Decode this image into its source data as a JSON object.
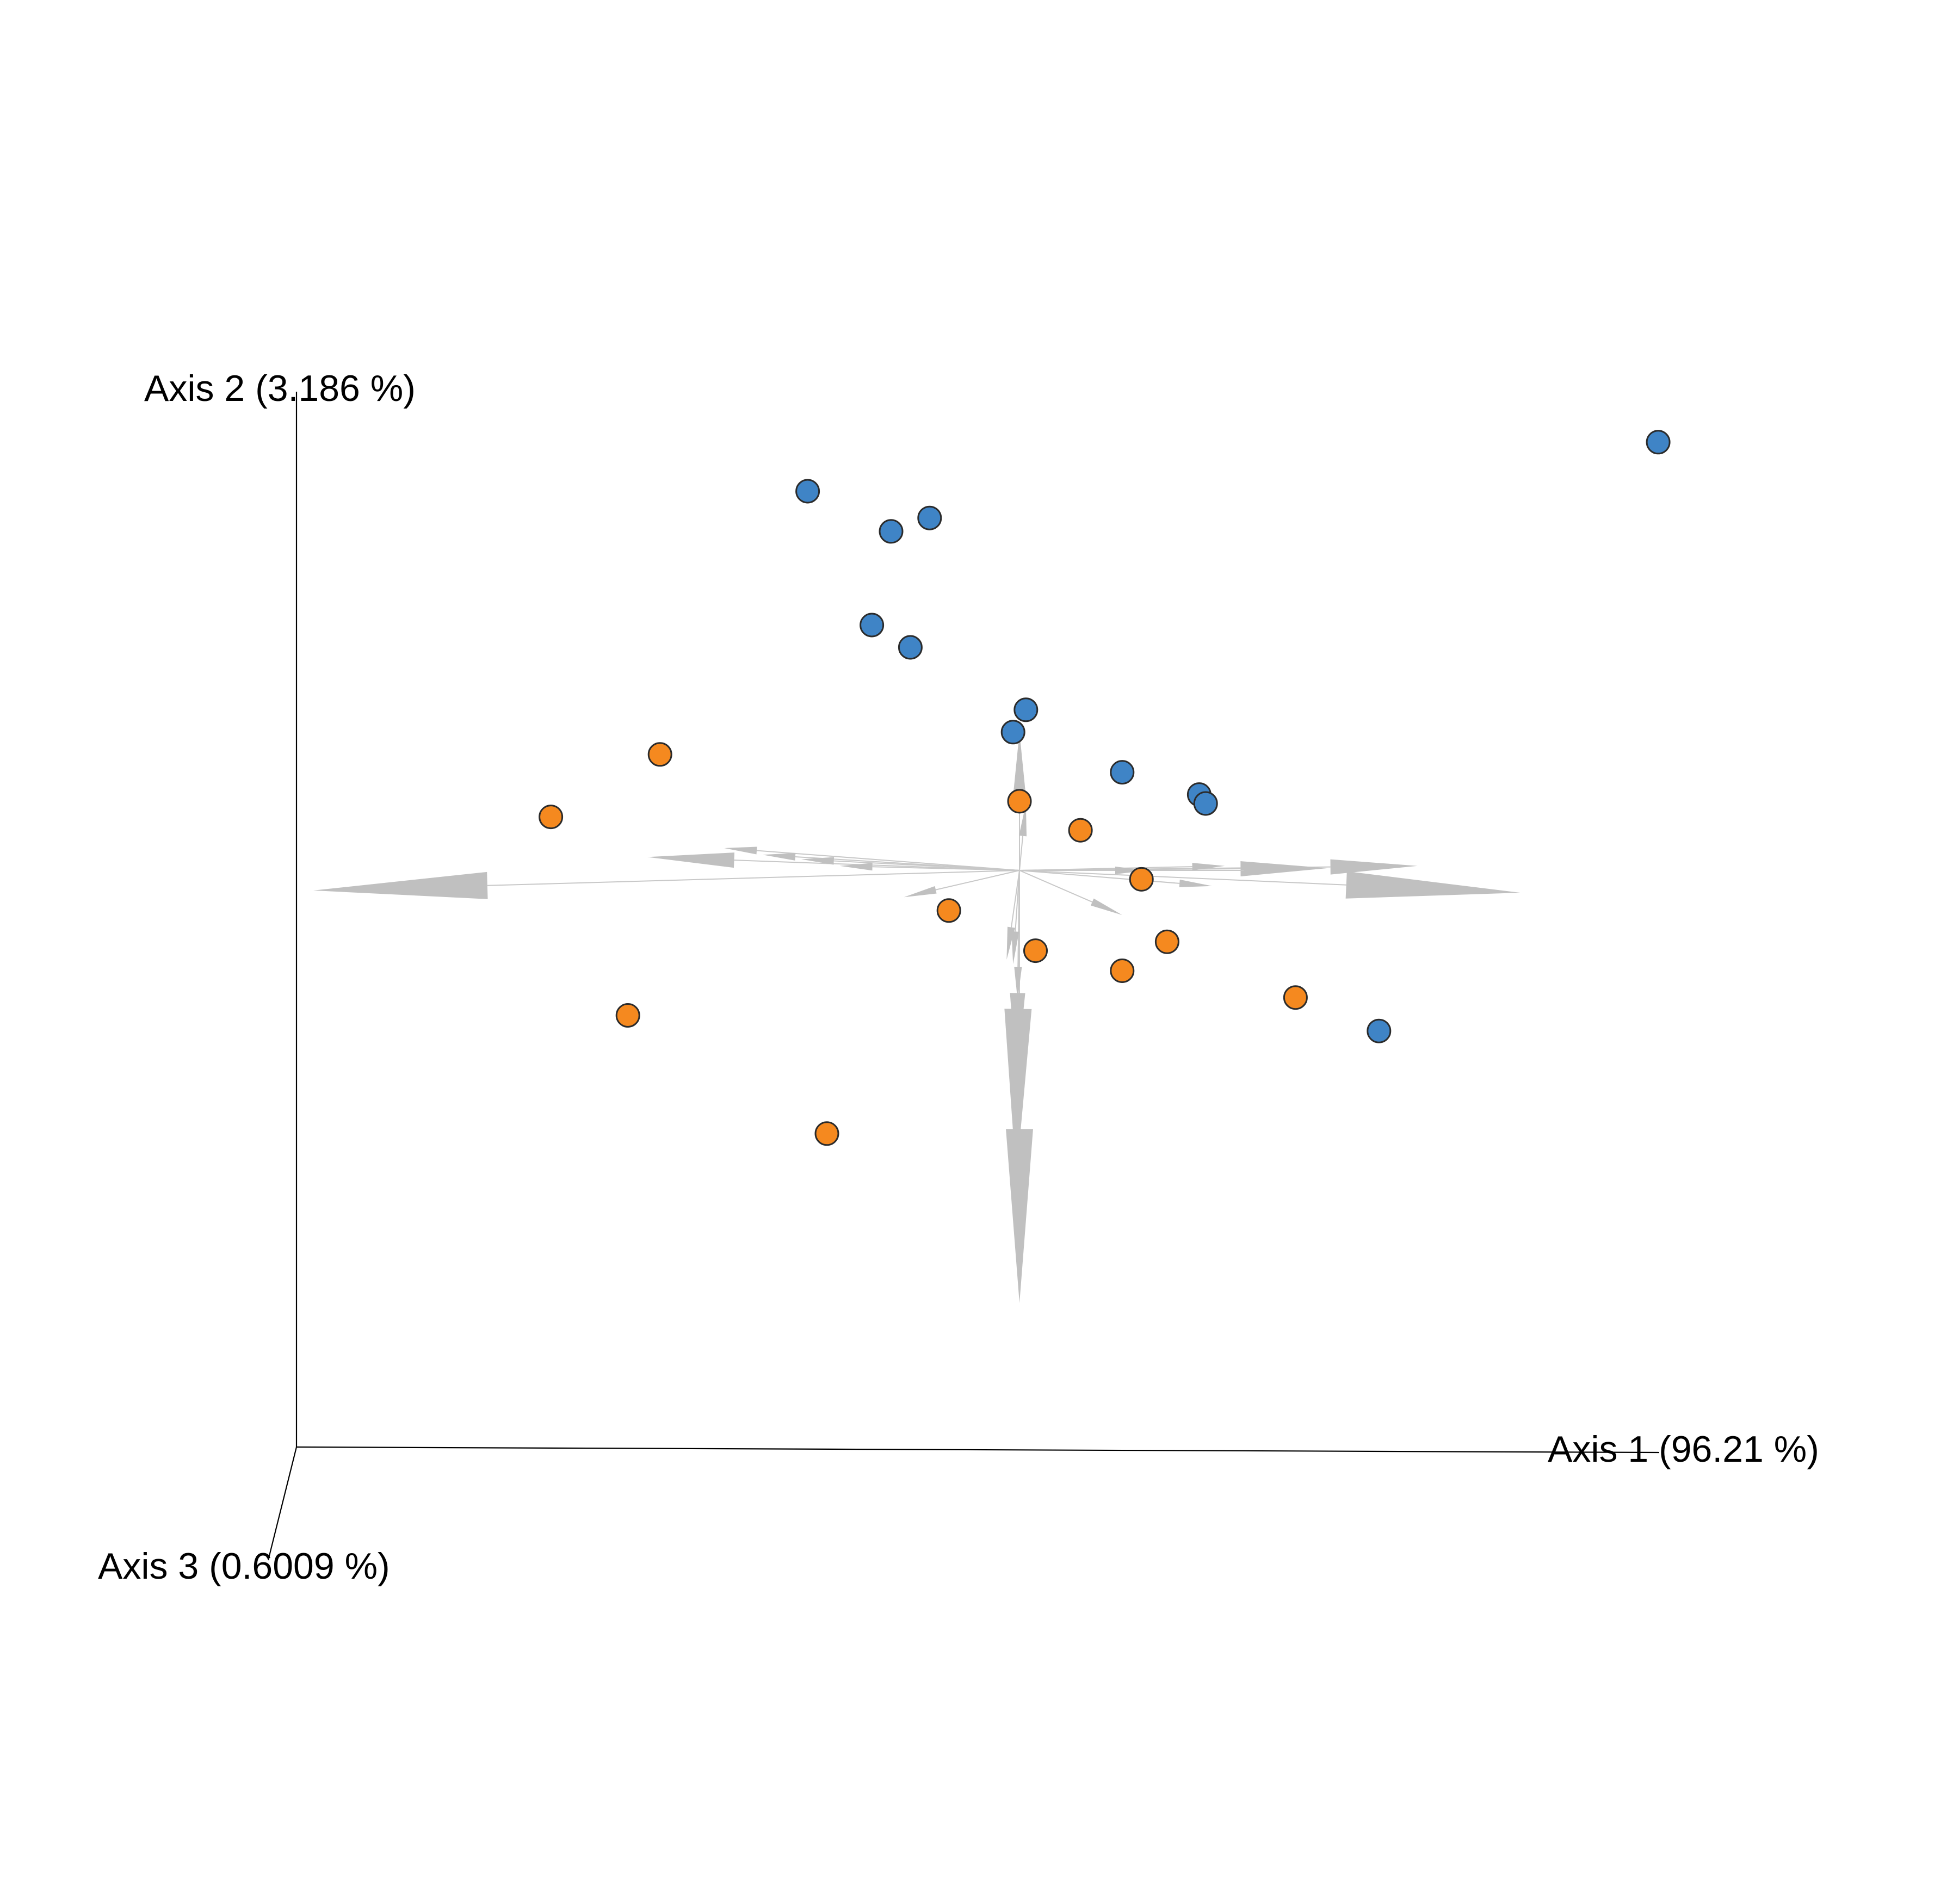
{
  "chart_data": {
    "type": "scatter",
    "title": "",
    "axes": {
      "x": {
        "label": "Axis 1 (96.21 %)"
      },
      "y": {
        "label": "Axis 2 (3.186 %)"
      },
      "z": {
        "label": "Axis 3 (0.6009 %)"
      }
    },
    "grid": false,
    "legend": "none",
    "colors": {
      "group_blue": "#3f84c6",
      "group_orange": "#f5891f",
      "biplot_arrows": "#c0c0c0",
      "axes": "#000000"
    },
    "series": [
      {
        "color": "#3f84c6",
        "points": [
          {
            "x": 0.995,
            "y": 0.96
          },
          {
            "x": -0.33,
            "y": 0.85
          },
          {
            "x": -0.2,
            "y": 0.76
          },
          {
            "x": -0.14,
            "y": 0.79
          },
          {
            "x": -0.23,
            "y": 0.55
          },
          {
            "x": -0.17,
            "y": 0.5
          },
          {
            "x": 0.01,
            "y": 0.36
          },
          {
            "x": -0.01,
            "y": 0.31
          },
          {
            "x": 0.16,
            "y": 0.22
          },
          {
            "x": 0.28,
            "y": 0.17
          },
          {
            "x": 0.29,
            "y": 0.15
          },
          {
            "x": 0.56,
            "y": -0.36
          }
        ]
      },
      {
        "color": "#f5891f",
        "points": [
          {
            "x": -0.56,
            "y": 0.26
          },
          {
            "x": -0.73,
            "y": 0.12
          },
          {
            "x": 0.0,
            "y": 0.155
          },
          {
            "x": 0.095,
            "y": 0.09
          },
          {
            "x": 0.19,
            "y": -0.02
          },
          {
            "x": -0.11,
            "y": -0.09
          },
          {
            "x": 0.23,
            "y": -0.16
          },
          {
            "x": 0.025,
            "y": -0.18
          },
          {
            "x": 0.16,
            "y": -0.225
          },
          {
            "x": 0.43,
            "y": -0.285
          },
          {
            "x": -0.61,
            "y": -0.325
          },
          {
            "x": -0.3,
            "y": -0.59
          }
        ]
      }
    ],
    "biplot_arrows": [
      {
        "dx": -1.1,
        "dy": -0.045,
        "head": "large"
      },
      {
        "dx": 0.78,
        "dy": -0.05,
        "head": "large"
      },
      {
        "dx": 0.62,
        "dy": 0.01,
        "head": "medium"
      },
      {
        "dx": 0.48,
        "dy": 0.005,
        "head": "medium"
      },
      {
        "dx": 0.4,
        "dy": 0.0,
        "head": "small"
      },
      {
        "dx": 0.32,
        "dy": 0.01,
        "head": "small"
      },
      {
        "dx": 0.3,
        "dy": -0.035,
        "head": "small"
      },
      {
        "dx": 0.2,
        "dy": 0.0,
        "head": "small"
      },
      {
        "dx": -0.58,
        "dy": 0.03,
        "head": "medium"
      },
      {
        "dx": -0.46,
        "dy": 0.05,
        "head": "small"
      },
      {
        "dx": -0.4,
        "dy": 0.035,
        "head": "small"
      },
      {
        "dx": -0.34,
        "dy": 0.025,
        "head": "small"
      },
      {
        "dx": -0.28,
        "dy": 0.01,
        "head": "small"
      },
      {
        "dx": -0.18,
        "dy": -0.06,
        "head": "small"
      },
      {
        "dx": 0.16,
        "dy": -0.1,
        "head": "small"
      },
      {
        "dx": 0.0,
        "dy": 0.31,
        "head": "medium"
      },
      {
        "dx": 0.01,
        "dy": 0.15,
        "head": "small"
      },
      {
        "dx": 0.0,
        "dy": -0.97,
        "head": "large"
      },
      {
        "dx": -0.005,
        "dy": -0.69,
        "head": "large"
      },
      {
        "dx": -0.005,
        "dy": -0.47,
        "head": "medium"
      },
      {
        "dx": -0.003,
        "dy": -0.29,
        "head": "small"
      },
      {
        "dx": -0.01,
        "dy": -0.21,
        "head": "small"
      },
      {
        "dx": -0.02,
        "dy": -0.2,
        "head": "small"
      }
    ]
  }
}
